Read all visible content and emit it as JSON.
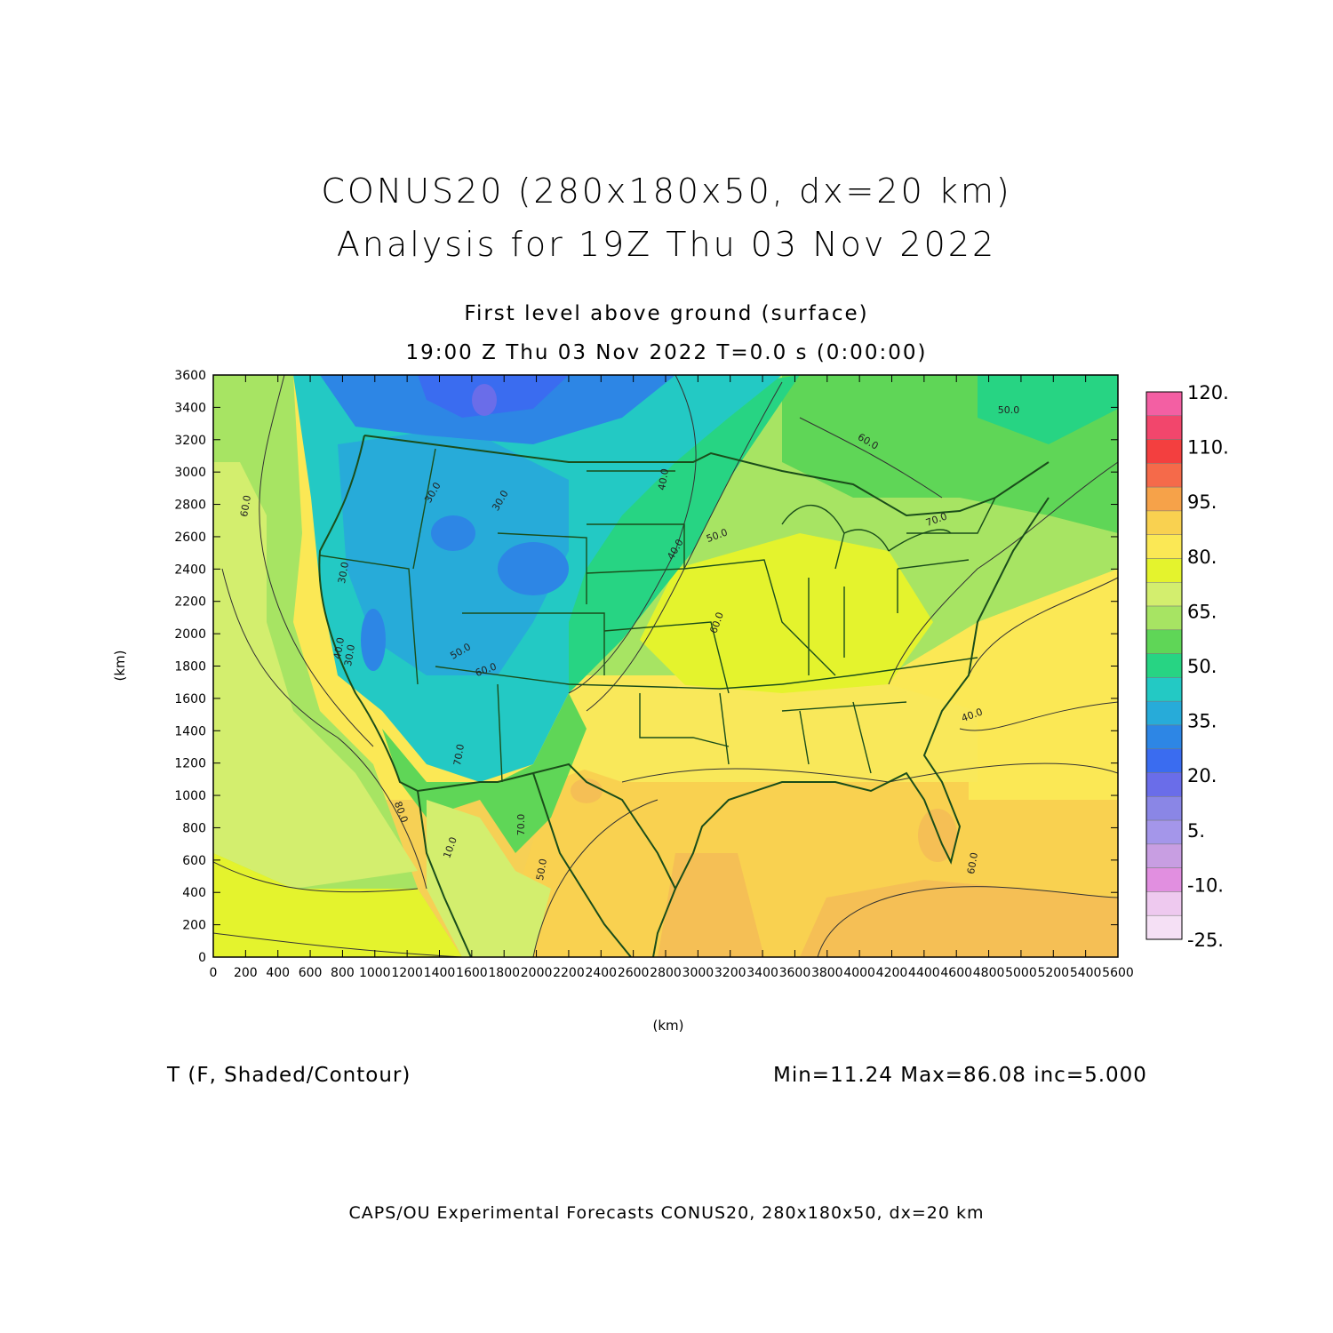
{
  "header": {
    "title_line1": "CONUS20 (280x180x50, dx=20 km)",
    "title_line2": "Analysis for 19Z Thu 03 Nov 2022",
    "level": "First level above ground (surface)",
    "valid": "19:00 Z Thu 03 Nov 2022    T=0.0 s (0:00:00)"
  },
  "axes": {
    "x_label": "(km)",
    "y_label": "(km)",
    "x_range": [
      0,
      5600
    ],
    "y_range": [
      0,
      3600
    ],
    "x_ticks": [
      "0",
      "200",
      "400",
      "600",
      "800",
      "1000",
      "1200",
      "1400",
      "1600",
      "1800",
      "2000",
      "2200",
      "2400",
      "2600",
      "2800",
      "3000",
      "3200",
      "3400",
      "3600",
      "3800",
      "4000",
      "4200",
      "4400",
      "4600",
      "4800",
      "5000",
      "5200",
      "5400",
      "5600"
    ],
    "y_ticks": [
      "0",
      "200",
      "400",
      "600",
      "800",
      "1000",
      "1200",
      "1400",
      "1600",
      "1800",
      "2000",
      "2200",
      "2400",
      "2600",
      "2800",
      "3000",
      "3200",
      "3400",
      "3600"
    ]
  },
  "colorbar": {
    "labels": [
      "120.",
      "110.",
      "95.",
      "80.",
      "65.",
      "50.",
      "35.",
      "20.",
      "5.",
      "-10.",
      "-25."
    ],
    "colors": [
      "#f35fa3",
      "#f2466c",
      "#f33f3f",
      "#f56a4a",
      "#f6a249",
      "#f9d150",
      "#fbe855",
      "#e4f32d",
      "#d3ee6e",
      "#a7e463",
      "#5fd657",
      "#27d483",
      "#23c9c4",
      "#27abd9",
      "#2d86e5",
      "#3a6cf0",
      "#6a6de9",
      "#8a86e6",
      "#a496ea",
      "#c89ee2",
      "#e18fe0",
      "#eec9ef",
      "#f5e0f5"
    ]
  },
  "contour_labels": [
    "60.0",
    "30.0",
    "30.0",
    "40.0",
    "50.0",
    "60.0",
    "50.0",
    "40.0",
    "30.0",
    "30.0",
    "40.0",
    "50.0",
    "60.0",
    "70.0",
    "80.0",
    "70.0",
    "50.0",
    "40.0",
    "60.0",
    "60.0",
    "70.0",
    "10.0"
  ],
  "footer": {
    "variable": "T (F, Shaded/Contour)",
    "stats": "Min=11.24  Max=86.08  inc=5.000",
    "credit": "CAPS/OU Experimental Forecasts  CONUS20, 280x180x50, dx=20 km"
  },
  "colors": {
    "border": "#1a4d1a",
    "contour": "#333333"
  }
}
